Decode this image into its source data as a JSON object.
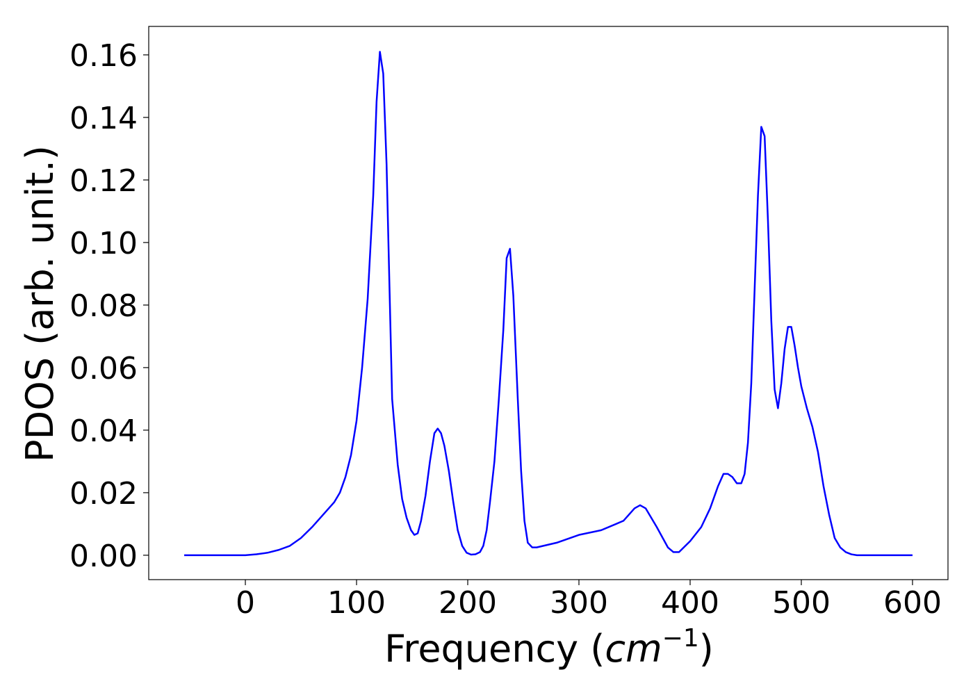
{
  "chart_data": {
    "type": "line",
    "x_label": {
      "text": "Frequency (",
      "math": "cm",
      "sup": "−1",
      "close": ")"
    },
    "y_label": "PDOS (arb. unit.)",
    "x": [
      -55,
      0,
      10,
      20,
      30,
      40,
      50,
      60,
      70,
      80,
      85,
      90,
      95,
      100,
      105,
      110,
      115,
      118,
      121,
      124,
      127,
      132,
      137,
      141,
      145,
      149,
      152,
      155,
      158,
      162,
      166,
      170,
      173,
      176,
      179,
      183,
      187,
      191,
      195,
      199,
      203,
      207,
      211,
      214,
      217,
      220,
      224,
      228,
      232,
      235,
      238,
      241,
      245,
      248,
      251,
      254,
      258,
      262,
      280,
      300,
      320,
      340,
      350,
      355,
      360,
      370,
      380,
      385,
      390,
      400,
      410,
      418,
      425,
      430,
      434,
      438,
      442,
      446,
      449,
      452,
      455,
      458,
      461,
      464,
      467,
      470,
      473,
      476,
      479,
      482,
      485,
      488,
      491,
      494,
      497,
      500,
      505,
      510,
      515,
      520,
      525,
      530,
      535,
      540,
      545,
      550,
      600
    ],
    "series": [
      {
        "color": "#0000ff",
        "values": [
          0,
          0,
          0.0003,
          0.0008,
          0.0017,
          0.003,
          0.0055,
          0.009,
          0.013,
          0.017,
          0.02,
          0.025,
          0.032,
          0.043,
          0.06,
          0.082,
          0.115,
          0.145,
          0.161,
          0.154,
          0.125,
          0.05,
          0.029,
          0.018,
          0.012,
          0.008,
          0.0065,
          0.007,
          0.011,
          0.019,
          0.03,
          0.039,
          0.0405,
          0.039,
          0.035,
          0.027,
          0.017,
          0.008,
          0.003,
          0.0008,
          0.0002,
          0.0003,
          0.001,
          0.003,
          0.008,
          0.017,
          0.03,
          0.05,
          0.072,
          0.095,
          0.098,
          0.083,
          0.05,
          0.027,
          0.011,
          0.004,
          0.0025,
          0.0025,
          0.004,
          0.0065,
          0.008,
          0.011,
          0.015,
          0.016,
          0.015,
          0.009,
          0.0025,
          0.001,
          0.001,
          0.0045,
          0.009,
          0.015,
          0.022,
          0.026,
          0.026,
          0.025,
          0.023,
          0.023,
          0.026,
          0.036,
          0.055,
          0.085,
          0.115,
          0.137,
          0.134,
          0.107,
          0.075,
          0.053,
          0.047,
          0.055,
          0.066,
          0.073,
          0.073,
          0.067,
          0.06,
          0.054,
          0.047,
          0.041,
          0.033,
          0.022,
          0.013,
          0.0055,
          0.0025,
          0.001,
          0.0003,
          0,
          0
        ]
      }
    ],
    "xlim": [
      -86.9,
      631.9
    ],
    "ylim": [
      -0.0078,
      0.1691
    ],
    "xticks": [
      0,
      100,
      200,
      300,
      400,
      500,
      600
    ],
    "yticks": [
      {
        "value": 0,
        "label": "0.00"
      },
      {
        "value": 0.02,
        "label": "0.02"
      },
      {
        "value": 0.04,
        "label": "0.04"
      },
      {
        "value": 0.06,
        "label": "0.06"
      },
      {
        "value": 0.08,
        "label": "0.08"
      },
      {
        "value": 0.1,
        "label": "0.10"
      },
      {
        "value": 0.12,
        "label": "0.12"
      },
      {
        "value": 0.14,
        "label": "0.14"
      },
      {
        "value": 0.16,
        "label": "0.16"
      }
    ],
    "grid": false
  }
}
